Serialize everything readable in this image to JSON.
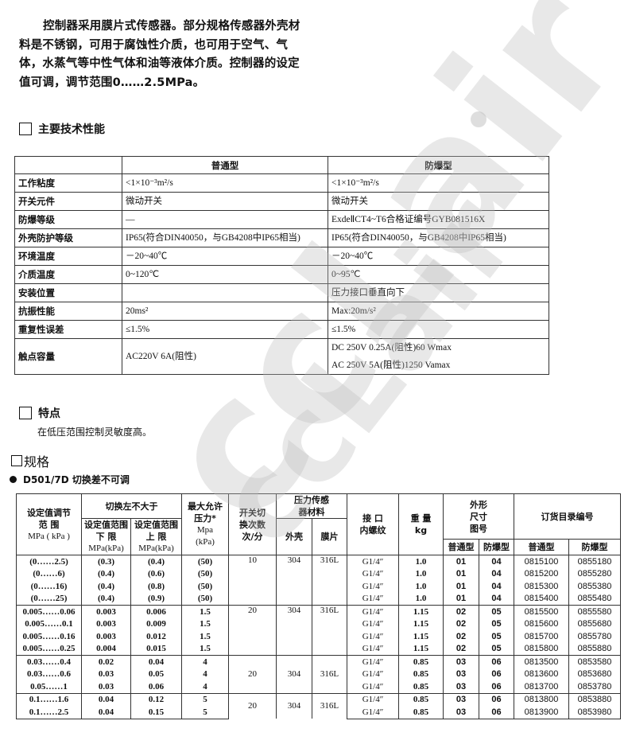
{
  "intro": "控制器采用膜片式传感器。部分规格传感器外壳材料是不锈钢，可用于腐蚀性介质，也可用于空气、气体，水蒸气等中性气体和油等液体介质。控制器的设定值可调，调节范围0……2.5MPa。",
  "section_specs": "主要技术性能",
  "spec_table": {
    "headers": [
      "",
      "普通型",
      "防爆型"
    ],
    "rows": [
      {
        "label": "工作粘度",
        "std": [
          "<1×10⁻³m²/s"
        ],
        "ex": [
          "<1×10⁻³m²/s"
        ]
      },
      {
        "label": "开关元件",
        "std": [
          "微动开关"
        ],
        "ex": [
          "微动开关"
        ]
      },
      {
        "label": "防爆等级",
        "std": [
          "—"
        ],
        "ex": [
          "ExdeⅡCT4~T6合格证编号GYB081516X"
        ]
      },
      {
        "label": "外壳防护等级",
        "std": [
          "IP65(符合DIN40050，与GB4208中IP65相当)"
        ],
        "ex": [
          "IP65(符合DIN40050，与GB4208中IP65相当)"
        ]
      },
      {
        "label": "环境温度",
        "std": [
          "－20~40℃"
        ],
        "ex": [
          "－20~40℃"
        ]
      },
      {
        "label": "介质温度",
        "std": [
          "0~120℃"
        ],
        "ex": [
          "0~95℃"
        ]
      },
      {
        "label": "安装位置",
        "std": [
          ""
        ],
        "ex": [
          "压力接口垂直向下"
        ]
      },
      {
        "label": "抗振性能",
        "std": [
          "20ms²"
        ],
        "ex": [
          "Max:20m/s²"
        ]
      },
      {
        "label": "重复性误差",
        "std": [
          "≤1.5%"
        ],
        "ex": [
          "≤1.5%"
        ]
      },
      {
        "label": "触点容量",
        "std": [
          "AC220V 6A(阻性)"
        ],
        "ex": [
          "DC 250V 0.25A(阻性)60 Wmax",
          "AC 250V 5A(阻性)1250 Vamax"
        ]
      }
    ]
  },
  "section_features": "特点",
  "features_text": "在低压范围控制灵敏度高。",
  "section_models": "规格",
  "model_title": "D501/7D 切换差不可调",
  "sel_table": {
    "h_range": [
      "设定值调节",
      "范 围",
      "MPa ( kPa )"
    ],
    "h_diff": "切换左不大于",
    "h_low": [
      "设定值范围",
      "下  限",
      "MPa(kPa)"
    ],
    "h_high": [
      "设定值范围",
      "上  限",
      "MPa(kPa)"
    ],
    "h_maxp": [
      "最大允许",
      "压力*",
      "Mpa",
      "(kPa)"
    ],
    "h_cycles": [
      "开关切",
      "换次数",
      "次/分"
    ],
    "h_material": [
      "压力传感",
      "器材料"
    ],
    "h_housing": "外壳",
    "h_diaphragm": "膜片",
    "h_thread": [
      "接  口",
      "内螺纹"
    ],
    "h_weight": [
      "重  量",
      "kg"
    ],
    "h_dim": [
      "外形",
      "尺寸",
      "图号"
    ],
    "h_order": "订货目录编号",
    "h_std": "普通型",
    "h_ex": "防爆型",
    "groups": [
      {
        "cycles": "10",
        "housing": "304",
        "diaphragm": "316L",
        "valign": "top",
        "rows": [
          [
            "(0……2.5)",
            "(0.3)",
            "(0.4)",
            "(50)",
            "G1/4″",
            "1.0",
            "01",
            "04",
            "0815100",
            "0855180"
          ],
          [
            "(0……6)",
            "(0.4)",
            "(0.6)",
            "(50)",
            "G1/4″",
            "1.0",
            "01",
            "04",
            "0815200",
            "0855280"
          ],
          [
            "(0……16)",
            "(0.4)",
            "(0.8)",
            "(50)",
            "G1/4″",
            "1.0",
            "01",
            "04",
            "0815300",
            "0855380"
          ],
          [
            "(0……25)",
            "(0.4)",
            "(0.9)",
            "(50)",
            "G1/4″",
            "1.0",
            "01",
            "04",
            "0815400",
            "0855480"
          ]
        ]
      },
      {
        "cycles": "20",
        "housing": "304",
        "diaphragm": "316L",
        "valign": "top",
        "rows": [
          [
            "0.005……0.06",
            "0.003",
            "0.006",
            "1.5",
            "G1/4″",
            "1.15",
            "02",
            "05",
            "0815500",
            "0855580"
          ],
          [
            "0.005……0.1",
            "0.003",
            "0.009",
            "1.5",
            "G1/4″",
            "1.15",
            "02",
            "05",
            "0815600",
            "0855680"
          ],
          [
            "0.005……0.16",
            "0.003",
            "0.012",
            "1.5",
            "G1/4″",
            "1.15",
            "02",
            "05",
            "0815700",
            "0855780"
          ],
          [
            "0.005……0.25",
            "0.004",
            "0.015",
            "1.5",
            "G1/4″",
            "1.15",
            "02",
            "05",
            "0815800",
            "0855880"
          ]
        ]
      },
      {
        "cycles": "20",
        "housing": "304",
        "diaphragm": "316L",
        "valign": "middle",
        "rows": [
          [
            "0.03……0.4",
            "0.02",
            "0.04",
            "4",
            "G1/4″",
            "0.85",
            "03",
            "06",
            "0813500",
            "0853580"
          ],
          [
            "0.03……0.6",
            "0.03",
            "0.05",
            "4",
            "G1/4″",
            "0.85",
            "03",
            "06",
            "0813600",
            "0853680"
          ],
          [
            "0.05……1",
            "0.03",
            "0.06",
            "4",
            "G1/4″",
            "0.85",
            "03",
            "06",
            "0813700",
            "0853780"
          ]
        ]
      },
      {
        "cycles": "20",
        "housing": "304",
        "diaphragm": "316L",
        "valign": "middle",
        "rows": [
          [
            "0.1……1.6",
            "0.04",
            "0.12",
            "5",
            "G1/4″",
            "0.85",
            "03",
            "06",
            "0813800",
            "0853880"
          ],
          [
            "0.1……2.5",
            "0.04",
            "0.15",
            "5",
            "G1/4″",
            "0.85",
            "03",
            "06",
            "0813900",
            "0853980"
          ]
        ]
      }
    ]
  },
  "watermark": "ccLair",
  "watermark_color": "#bebebe"
}
